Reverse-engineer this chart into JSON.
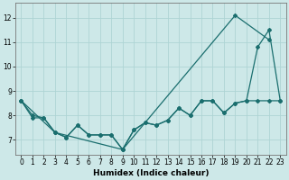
{
  "xlabel": "Humidex (Indice chaleur)",
  "bg_color": "#cde8e8",
  "line_color": "#1a6e6e",
  "grid_color": "#aed4d4",
  "xlim": [
    -0.5,
    23.5
  ],
  "ylim": [
    6.4,
    12.6
  ],
  "yticks": [
    7,
    8,
    9,
    10,
    11,
    12
  ],
  "xticks": [
    0,
    1,
    2,
    3,
    4,
    5,
    6,
    7,
    8,
    9,
    10,
    11,
    12,
    13,
    14,
    15,
    16,
    17,
    18,
    19,
    20,
    21,
    22,
    23
  ],
  "series1_x": [
    0,
    1,
    2,
    3,
    4,
    5,
    6,
    7,
    8,
    9,
    10,
    11,
    12,
    13,
    14,
    15,
    16,
    17,
    18,
    19,
    20,
    21,
    22,
    23
  ],
  "series1_y": [
    8.6,
    8.0,
    7.9,
    7.3,
    7.1,
    7.6,
    7.2,
    7.2,
    7.2,
    6.6,
    7.4,
    7.7,
    7.6,
    7.8,
    8.3,
    8.0,
    8.6,
    8.6,
    8.1,
    8.5,
    8.6,
    8.6,
    8.6,
    8.6
  ],
  "series2_x": [
    0,
    1,
    2,
    3,
    4,
    5,
    6,
    7,
    8,
    9,
    10,
    11,
    12,
    13,
    14,
    15,
    16,
    17,
    18,
    19,
    20,
    21,
    22,
    23
  ],
  "series2_y": [
    8.6,
    7.9,
    7.9,
    7.3,
    7.1,
    7.6,
    7.2,
    7.2,
    7.2,
    6.6,
    7.4,
    7.7,
    7.6,
    7.8,
    8.3,
    8.0,
    8.6,
    8.6,
    8.1,
    8.5,
    8.6,
    10.8,
    11.5,
    8.6
  ],
  "series3_x": [
    0,
    3,
    9,
    19,
    22
  ],
  "series3_y": [
    8.6,
    7.3,
    6.6,
    12.1,
    11.1
  ],
  "marker": "D",
  "markersize": 2.0,
  "linewidth": 0.9
}
